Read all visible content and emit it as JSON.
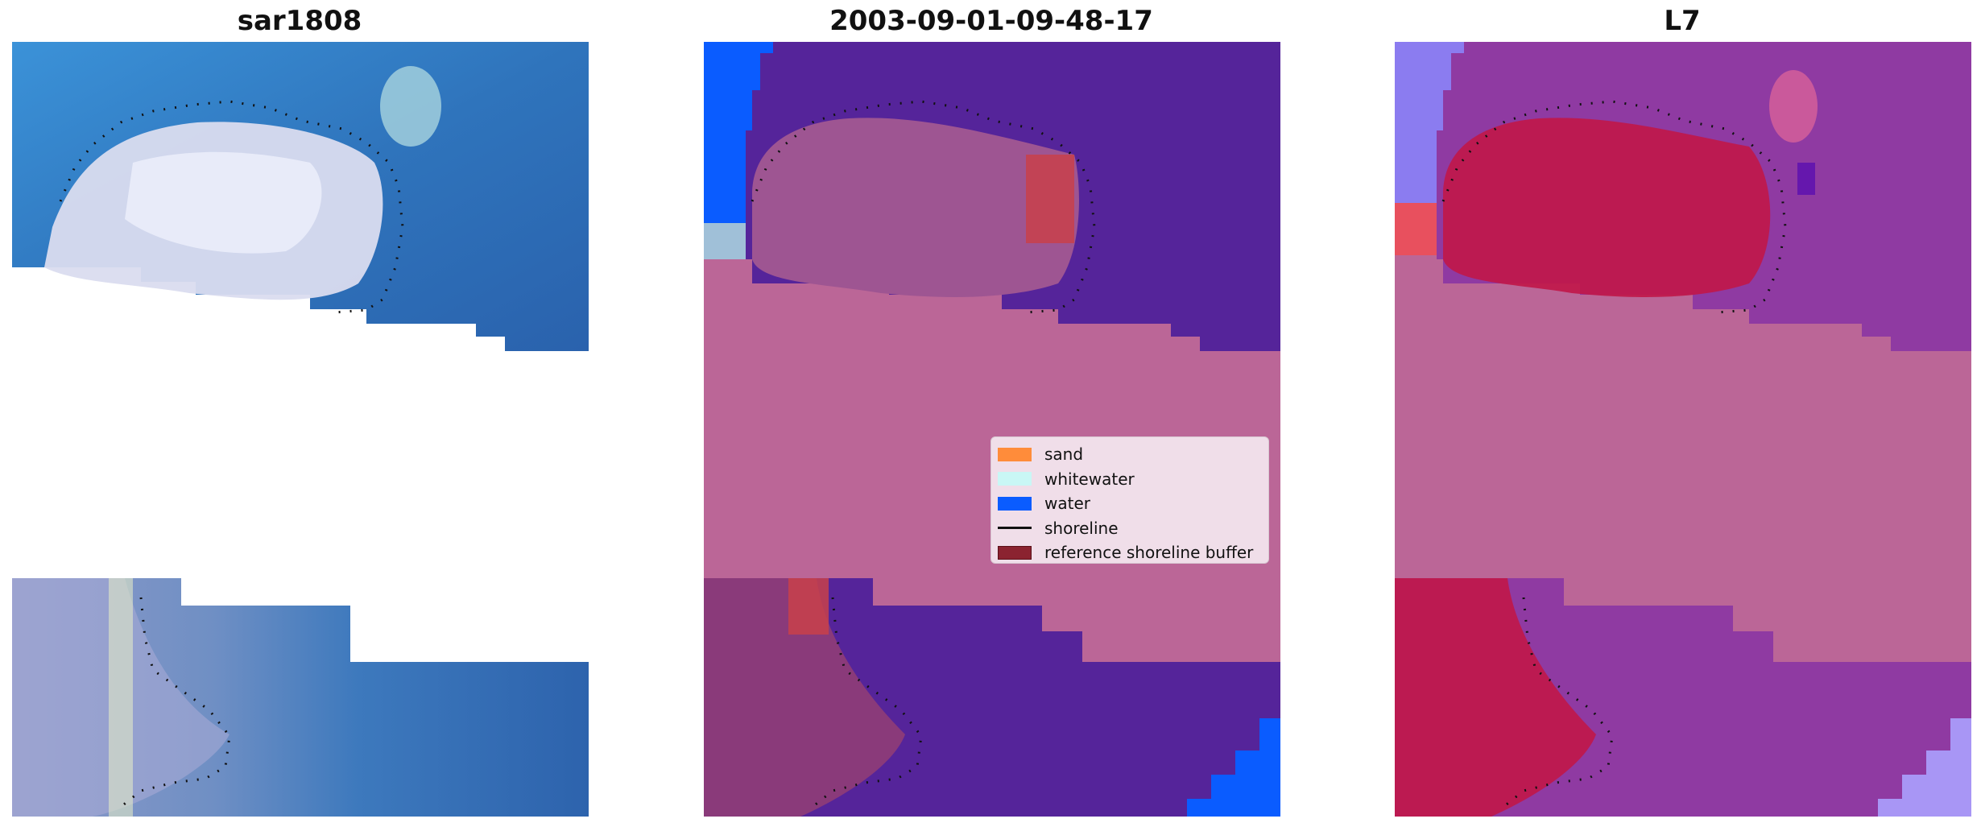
{
  "panels": [
    {
      "title": "sar1808"
    },
    {
      "title": "2003-09-01-09-48-17"
    },
    {
      "title": "L7"
    }
  ],
  "legend": [
    {
      "label": "sand",
      "color": "#ff8c3a",
      "kind": "patch"
    },
    {
      "label": "whitewater",
      "color": "#c9f7f5",
      "kind": "patch"
    },
    {
      "label": "water",
      "color": "#0a5cff",
      "kind": "patch"
    },
    {
      "label": "shoreline",
      "color": "#111111",
      "kind": "line"
    },
    {
      "label": "reference shoreline buffer",
      "color": "#8b2330",
      "kind": "patch"
    }
  ],
  "colors": {
    "sea_rgb": "#2f6fb8",
    "cloud_rgb": "#dde0f0",
    "class_bg_pink": "#bb6697",
    "class_water_purple": "#55249a",
    "class_land_mauve": "#8a3a7a",
    "buffer_red": "#c8414a",
    "water_blue": "#0a5cff",
    "l7_red": "#c0184a",
    "l7_purple": "#8f3aa2"
  }
}
